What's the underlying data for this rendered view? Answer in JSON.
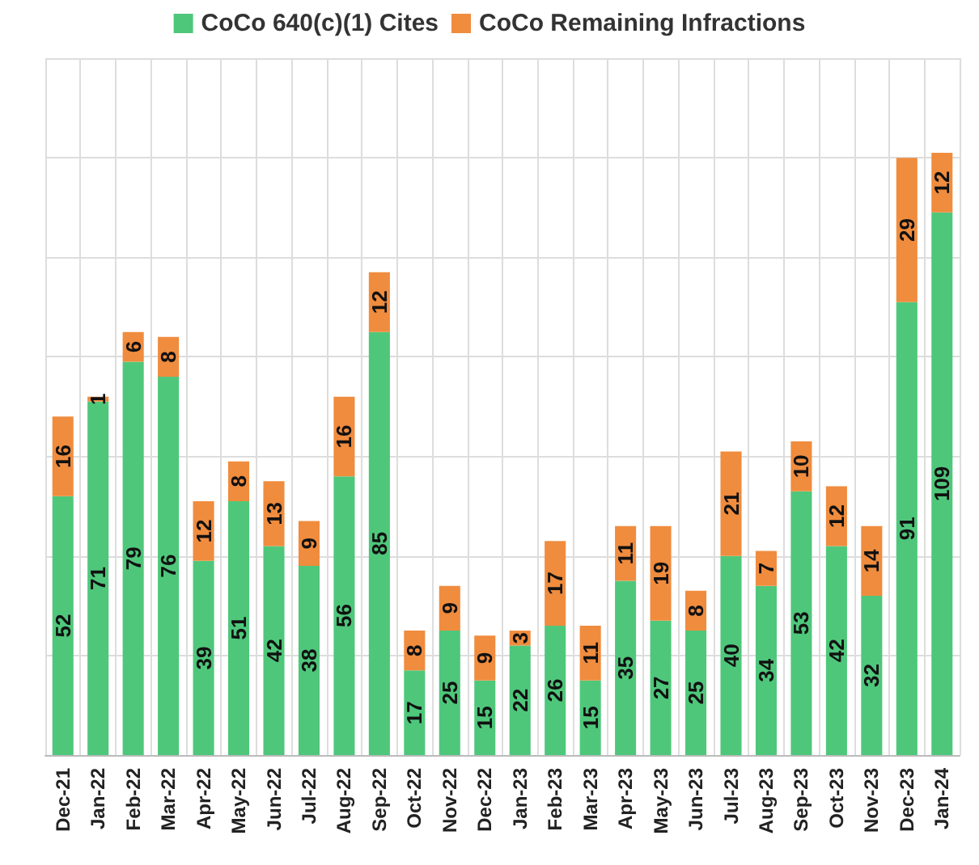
{
  "chart_data": {
    "type": "bar",
    "stacked": true,
    "categories": [
      "Dec-21",
      "Jan-22",
      "Feb-22",
      "Mar-22",
      "Apr-22",
      "May-22",
      "Jun-22",
      "Jul-22",
      "Aug-22",
      "Sep-22",
      "Oct-22",
      "Nov-22",
      "Dec-22",
      "Jan-23",
      "Feb-23",
      "Mar-23",
      "Apr-23",
      "May-23",
      "Jun-23",
      "Jul-23",
      "Aug-23",
      "Sep-23",
      "Oct-23",
      "Nov-23",
      "Dec-23",
      "Jan-24"
    ],
    "series": [
      {
        "name": "CoCo 640(c)(1) Cites",
        "color": "#4fc77b",
        "values": [
          52,
          71,
          79,
          76,
          39,
          51,
          42,
          38,
          56,
          85,
          17,
          25,
          15,
          22,
          26,
          15,
          35,
          27,
          25,
          40,
          34,
          53,
          42,
          32,
          91,
          109
        ]
      },
      {
        "name": "CoCo Remaining Infractions",
        "color": "#f08c3e",
        "values": [
          16,
          1,
          6,
          8,
          12,
          8,
          13,
          9,
          16,
          12,
          8,
          9,
          9,
          3,
          17,
          11,
          11,
          19,
          8,
          21,
          7,
          10,
          12,
          14,
          29,
          12
        ]
      }
    ],
    "ylim": [
      0,
      140
    ],
    "yticks": [
      0,
      20,
      40,
      60,
      80,
      100,
      120,
      140
    ],
    "tick_labels": "x",
    "grid": true,
    "legend": "top",
    "data_labels": true
  }
}
